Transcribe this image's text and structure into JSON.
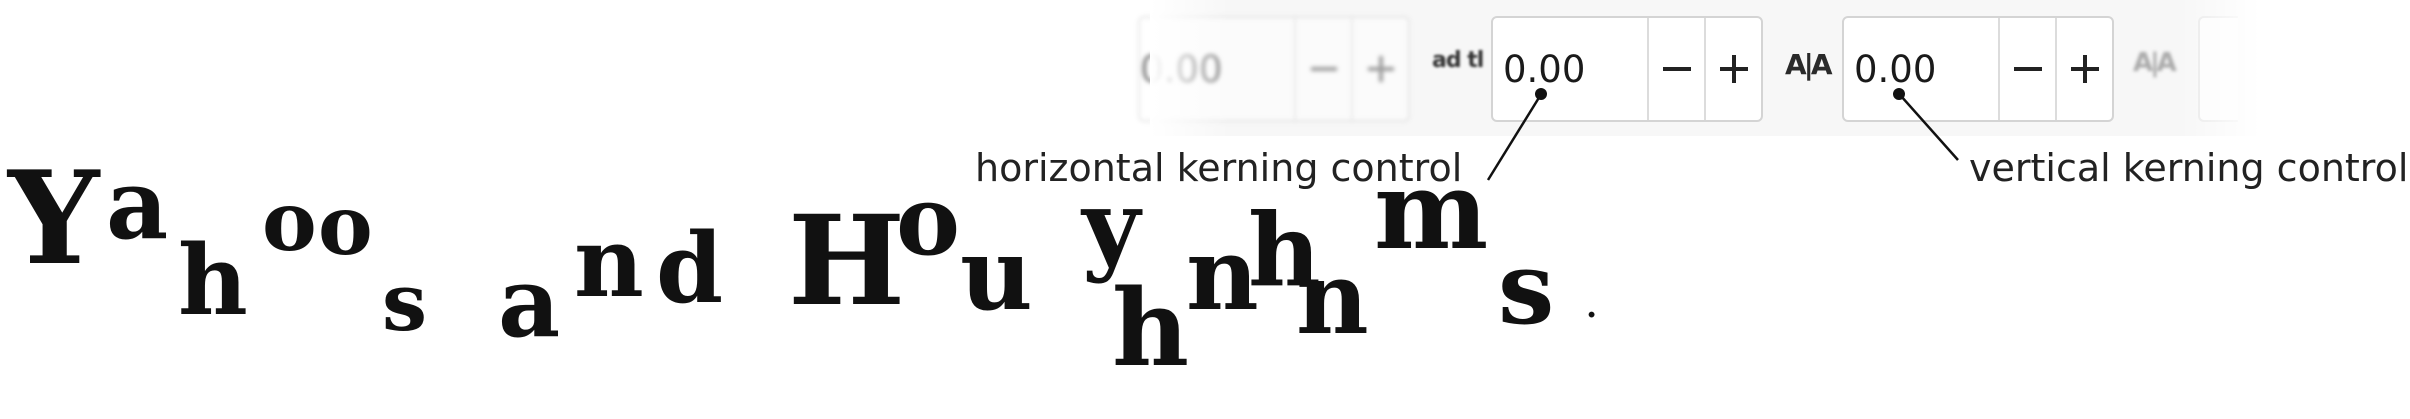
{
  "toolbar": {
    "partial_field": {
      "value": "0.00"
    },
    "horizontal_kerning": {
      "value": "0.00"
    },
    "vertical_kerning": {
      "value": "0.00"
    },
    "icons": {
      "horizontal_kerning": "horizontal-kerning-icon",
      "vertical_kerning": "vertical-kerning-icon",
      "rotation": "character-rotation-icon",
      "minus": "minus-icon",
      "plus": "plus-icon"
    }
  },
  "callouts": {
    "horizontal": "horizontal kerning control",
    "vertical": "vertical kerning control"
  },
  "sample_text": "Yahoos and Houyhnhnms."
}
